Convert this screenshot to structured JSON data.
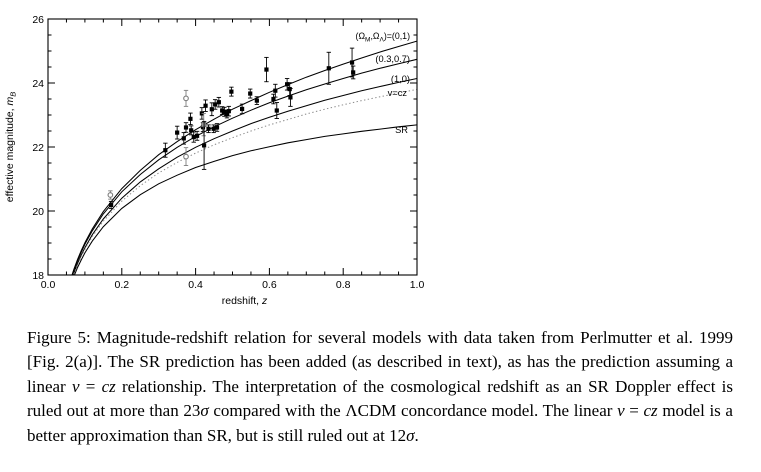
{
  "chart_data": {
    "type": "scatter",
    "title": "",
    "grid": false,
    "legend": "curve labels at right edge",
    "xlabel_parts": [
      {
        "t": "redshift, ",
        "i": false
      },
      {
        "t": "z",
        "i": true
      }
    ],
    "ylabel_parts": [
      {
        "t": "effective magnitude, ",
        "i": false
      },
      {
        "t": "m",
        "i": true
      },
      {
        "t": "B",
        "i": true,
        "sub": true
      }
    ],
    "xlim": [
      0.0,
      1.0
    ],
    "ylim": [
      18,
      26
    ],
    "xticks": {
      "major": [
        0.0,
        0.2,
        0.4,
        0.6,
        0.8,
        1.0
      ],
      "labels": [
        "0.0",
        "0.2",
        "0.4",
        "0.6",
        "0.8",
        "1.0"
      ],
      "minor_step": 0.05
    },
    "yticks": {
      "major": [
        18,
        20,
        22,
        24,
        26
      ],
      "labels": [
        "18",
        "20",
        "22",
        "24",
        "26"
      ],
      "minor_step": 0.5
    },
    "curve_z": [
      0.06,
      0.07,
      0.08,
      0.09,
      0.1,
      0.12,
      0.15,
      0.2,
      0.25,
      0.3,
      0.35,
      0.4,
      0.45,
      0.5,
      0.55,
      0.6,
      0.65,
      0.7,
      0.75,
      0.8,
      0.85,
      0.9,
      0.95,
      1.0
    ],
    "series": [
      {
        "name": "omega-0-1",
        "style": "solid",
        "label_parts": [
          {
            "t": "(Ω"
          },
          {
            "t": "M",
            "sub": true
          },
          {
            "t": ",Ω"
          },
          {
            "t": "Λ",
            "sub": true
          },
          {
            "t": ")=(0,1)"
          }
        ],
        "y": [
          17.82,
          18.17,
          18.48,
          18.76,
          19.01,
          19.44,
          19.98,
          20.7,
          21.27,
          21.76,
          22.17,
          22.54,
          22.87,
          23.18,
          23.45,
          23.71,
          23.95,
          24.18,
          24.39,
          24.59,
          24.78,
          24.97,
          25.14,
          25.31
        ]
      },
      {
        "name": "omega-03-07",
        "style": "solid",
        "label_parts": [
          {
            "t": "(0.3,0.7)"
          }
        ],
        "y": [
          17.79,
          18.14,
          18.44,
          18.71,
          18.96,
          19.38,
          19.91,
          20.6,
          21.14,
          21.6,
          21.99,
          22.33,
          22.63,
          22.9,
          23.15,
          23.38,
          23.59,
          23.79,
          23.97,
          24.14,
          24.31,
          24.46,
          24.6,
          24.74
        ]
      },
      {
        "name": "omega-1-0",
        "style": "solid",
        "label_parts": [
          {
            "t": "(1,0)"
          }
        ],
        "y": [
          17.72,
          18.06,
          18.36,
          18.62,
          18.85,
          19.26,
          19.75,
          20.4,
          20.91,
          21.32,
          21.68,
          21.99,
          22.26,
          22.5,
          22.73,
          22.93,
          23.12,
          23.29,
          23.46,
          23.61,
          23.76,
          23.89,
          24.02,
          24.14
        ]
      },
      {
        "name": "v-equals-cz",
        "style": "dotted",
        "label_parts": [
          {
            "t": "v=cz"
          }
        ],
        "y": [
          17.69,
          18.03,
          18.32,
          18.57,
          18.8,
          19.2,
          19.68,
          20.31,
          20.79,
          21.19,
          21.52,
          21.81,
          22.07,
          22.29,
          22.5,
          22.69,
          22.86,
          23.03,
          23.18,
          23.32,
          23.45,
          23.57,
          23.69,
          23.8
        ]
      },
      {
        "name": "SR",
        "style": "solid",
        "label_parts": [
          {
            "t": "SR"
          }
        ],
        "y": [
          17.63,
          17.95,
          18.23,
          18.47,
          18.69,
          19.06,
          19.51,
          20.08,
          20.51,
          20.85,
          21.12,
          21.36,
          21.55,
          21.73,
          21.88,
          22.01,
          22.13,
          22.23,
          22.33,
          22.41,
          22.49,
          22.56,
          22.63,
          22.69
        ]
      }
    ],
    "points": [
      {
        "z": 0.169,
        "m": 20.5,
        "e": 0.13,
        "t": "g"
      },
      {
        "z": 0.171,
        "m": 20.19,
        "e": 0.11,
        "t": "b"
      },
      {
        "z": 0.318,
        "m": 21.9,
        "e": 0.22,
        "t": "b"
      },
      {
        "z": 0.35,
        "m": 22.45,
        "e": 0.2,
        "t": "b"
      },
      {
        "z": 0.368,
        "m": 22.27,
        "e": 0.18,
        "t": "b"
      },
      {
        "z": 0.374,
        "m": 23.52,
        "e": 0.25,
        "t": "g"
      },
      {
        "z": 0.374,
        "m": 22.61,
        "e": 0.15,
        "t": "b"
      },
      {
        "z": 0.374,
        "m": 21.7,
        "e": 0.28,
        "t": "g"
      },
      {
        "z": 0.386,
        "m": 22.88,
        "e": 0.18,
        "t": "b"
      },
      {
        "z": 0.388,
        "m": 22.52,
        "e": 0.14,
        "t": "b"
      },
      {
        "z": 0.395,
        "m": 22.31,
        "e": 0.16,
        "t": "b"
      },
      {
        "z": 0.404,
        "m": 22.35,
        "e": 0.14,
        "t": "b"
      },
      {
        "z": 0.417,
        "m": 23.05,
        "e": 0.18,
        "t": "b"
      },
      {
        "z": 0.42,
        "m": 22.62,
        "e": 0.14,
        "t": "b"
      },
      {
        "z": 0.422,
        "m": 22.7,
        "e": 0.35,
        "t": "gs"
      },
      {
        "z": 0.423,
        "m": 22.05,
        "e": 0.75,
        "t": "b"
      },
      {
        "z": 0.427,
        "m": 23.29,
        "e": 0.18,
        "t": "b"
      },
      {
        "z": 0.435,
        "m": 22.57,
        "e": 0.12,
        "t": "b"
      },
      {
        "z": 0.444,
        "m": 23.18,
        "e": 0.2,
        "t": "b"
      },
      {
        "z": 0.449,
        "m": 22.57,
        "e": 0.12,
        "t": "b"
      },
      {
        "z": 0.453,
        "m": 23.33,
        "e": 0.15,
        "t": "b"
      },
      {
        "z": 0.458,
        "m": 22.61,
        "e": 0.12,
        "t": "b"
      },
      {
        "z": 0.463,
        "m": 23.4,
        "e": 0.15,
        "t": "b"
      },
      {
        "z": 0.472,
        "m": 23.14,
        "e": 0.12,
        "t": "b"
      },
      {
        "z": 0.478,
        "m": 23.1,
        "e": 0.14,
        "t": "b"
      },
      {
        "z": 0.485,
        "m": 23.03,
        "e": 0.12,
        "t": "b"
      },
      {
        "z": 0.49,
        "m": 23.12,
        "e": 0.15,
        "t": "b"
      },
      {
        "z": 0.497,
        "m": 23.73,
        "e": 0.14,
        "t": "b"
      },
      {
        "z": 0.526,
        "m": 23.19,
        "e": 0.15,
        "t": "b"
      },
      {
        "z": 0.548,
        "m": 23.67,
        "e": 0.14,
        "t": "b"
      },
      {
        "z": 0.566,
        "m": 23.45,
        "e": 0.12,
        "t": "b"
      },
      {
        "z": 0.592,
        "m": 24.42,
        "e": 0.38,
        "t": "b"
      },
      {
        "z": 0.611,
        "m": 23.5,
        "e": 0.15,
        "t": "b"
      },
      {
        "z": 0.616,
        "m": 23.76,
        "e": 0.2,
        "t": "b"
      },
      {
        "z": 0.62,
        "m": 23.14,
        "e": 0.25,
        "t": "b"
      },
      {
        "z": 0.648,
        "m": 23.96,
        "e": 0.18,
        "t": "b"
      },
      {
        "z": 0.655,
        "m": 23.81,
        "e": 0.2,
        "t": "b"
      },
      {
        "z": 0.657,
        "m": 23.55,
        "e": 0.28,
        "t": "b"
      },
      {
        "z": 0.761,
        "m": 24.46,
        "e": 0.5,
        "t": "b"
      },
      {
        "z": 0.824,
        "m": 24.64,
        "e": 0.45,
        "t": "b"
      },
      {
        "z": 0.827,
        "m": 24.33,
        "e": 0.2,
        "t": "b"
      }
    ],
    "colors": {
      "curve": "#000000",
      "dotted": "#8c8c8c",
      "point": "#000000",
      "gray_point": "#7d7d7d"
    }
  },
  "caption": {
    "runs": [
      {
        "t": "Figure 5: Magnitude-redshift relation for several models with data taken from Perlmutter et al. 1999 [Fig. 2(a)]. The SR prediction has been added (as described in text), as has the prediction assuming a linear ",
        "i": false
      },
      {
        "t": "v",
        "i": true
      },
      {
        "t": " = ",
        "i": false
      },
      {
        "t": "cz",
        "i": true
      },
      {
        "t": " relationship. The interpretation of the cosmological redshift as an SR Doppler effect is ruled out at more than 23",
        "i": false
      },
      {
        "t": "σ",
        "i": true
      },
      {
        "t": " compared with the ΛCDM concordance model. The linear ",
        "i": false
      },
      {
        "t": "v",
        "i": true
      },
      {
        "t": " = ",
        "i": false
      },
      {
        "t": "cz",
        "i": true
      },
      {
        "t": " model is a better approximation than SR, but is still ruled out at 12",
        "i": false
      },
      {
        "t": "σ",
        "i": true
      },
      {
        "t": ".",
        "i": false
      }
    ]
  }
}
